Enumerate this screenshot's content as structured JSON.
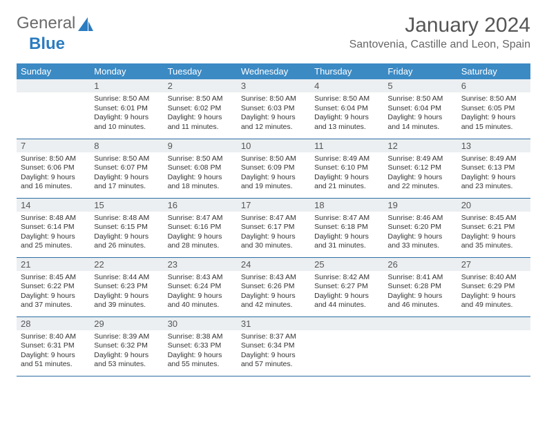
{
  "logo": {
    "text1": "General",
    "text2": "Blue"
  },
  "title": "January 2024",
  "location": "Santovenia, Castille and Leon, Spain",
  "colors": {
    "header_bg": "#3b8ac4",
    "header_text": "#ffffff",
    "daynum_bg": "#eceff1",
    "row_divider": "#2b6ca3",
    "logo_gray": "#6a6a6a",
    "logo_blue": "#2b7cc0"
  },
  "weekdays": [
    "Sunday",
    "Monday",
    "Tuesday",
    "Wednesday",
    "Thursday",
    "Friday",
    "Saturday"
  ],
  "start_offset": 1,
  "days": [
    {
      "n": "1",
      "sr": "8:50 AM",
      "ss": "6:01 PM",
      "dl": "9 hours and 10 minutes."
    },
    {
      "n": "2",
      "sr": "8:50 AM",
      "ss": "6:02 PM",
      "dl": "9 hours and 11 minutes."
    },
    {
      "n": "3",
      "sr": "8:50 AM",
      "ss": "6:03 PM",
      "dl": "9 hours and 12 minutes."
    },
    {
      "n": "4",
      "sr": "8:50 AM",
      "ss": "6:04 PM",
      "dl": "9 hours and 13 minutes."
    },
    {
      "n": "5",
      "sr": "8:50 AM",
      "ss": "6:04 PM",
      "dl": "9 hours and 14 minutes."
    },
    {
      "n": "6",
      "sr": "8:50 AM",
      "ss": "6:05 PM",
      "dl": "9 hours and 15 minutes."
    },
    {
      "n": "7",
      "sr": "8:50 AM",
      "ss": "6:06 PM",
      "dl": "9 hours and 16 minutes."
    },
    {
      "n": "8",
      "sr": "8:50 AM",
      "ss": "6:07 PM",
      "dl": "9 hours and 17 minutes."
    },
    {
      "n": "9",
      "sr": "8:50 AM",
      "ss": "6:08 PM",
      "dl": "9 hours and 18 minutes."
    },
    {
      "n": "10",
      "sr": "8:50 AM",
      "ss": "6:09 PM",
      "dl": "9 hours and 19 minutes."
    },
    {
      "n": "11",
      "sr": "8:49 AM",
      "ss": "6:10 PM",
      "dl": "9 hours and 21 minutes."
    },
    {
      "n": "12",
      "sr": "8:49 AM",
      "ss": "6:12 PM",
      "dl": "9 hours and 22 minutes."
    },
    {
      "n": "13",
      "sr": "8:49 AM",
      "ss": "6:13 PM",
      "dl": "9 hours and 23 minutes."
    },
    {
      "n": "14",
      "sr": "8:48 AM",
      "ss": "6:14 PM",
      "dl": "9 hours and 25 minutes."
    },
    {
      "n": "15",
      "sr": "8:48 AM",
      "ss": "6:15 PM",
      "dl": "9 hours and 26 minutes."
    },
    {
      "n": "16",
      "sr": "8:47 AM",
      "ss": "6:16 PM",
      "dl": "9 hours and 28 minutes."
    },
    {
      "n": "17",
      "sr": "8:47 AM",
      "ss": "6:17 PM",
      "dl": "9 hours and 30 minutes."
    },
    {
      "n": "18",
      "sr": "8:47 AM",
      "ss": "6:18 PM",
      "dl": "9 hours and 31 minutes."
    },
    {
      "n": "19",
      "sr": "8:46 AM",
      "ss": "6:20 PM",
      "dl": "9 hours and 33 minutes."
    },
    {
      "n": "20",
      "sr": "8:45 AM",
      "ss": "6:21 PM",
      "dl": "9 hours and 35 minutes."
    },
    {
      "n": "21",
      "sr": "8:45 AM",
      "ss": "6:22 PM",
      "dl": "9 hours and 37 minutes."
    },
    {
      "n": "22",
      "sr": "8:44 AM",
      "ss": "6:23 PM",
      "dl": "9 hours and 39 minutes."
    },
    {
      "n": "23",
      "sr": "8:43 AM",
      "ss": "6:24 PM",
      "dl": "9 hours and 40 minutes."
    },
    {
      "n": "24",
      "sr": "8:43 AM",
      "ss": "6:26 PM",
      "dl": "9 hours and 42 minutes."
    },
    {
      "n": "25",
      "sr": "8:42 AM",
      "ss": "6:27 PM",
      "dl": "9 hours and 44 minutes."
    },
    {
      "n": "26",
      "sr": "8:41 AM",
      "ss": "6:28 PM",
      "dl": "9 hours and 46 minutes."
    },
    {
      "n": "27",
      "sr": "8:40 AM",
      "ss": "6:29 PM",
      "dl": "9 hours and 49 minutes."
    },
    {
      "n": "28",
      "sr": "8:40 AM",
      "ss": "6:31 PM",
      "dl": "9 hours and 51 minutes."
    },
    {
      "n": "29",
      "sr": "8:39 AM",
      "ss": "6:32 PM",
      "dl": "9 hours and 53 minutes."
    },
    {
      "n": "30",
      "sr": "8:38 AM",
      "ss": "6:33 PM",
      "dl": "9 hours and 55 minutes."
    },
    {
      "n": "31",
      "sr": "8:37 AM",
      "ss": "6:34 PM",
      "dl": "9 hours and 57 minutes."
    }
  ],
  "labels": {
    "sunrise": "Sunrise:",
    "sunset": "Sunset:",
    "daylight": "Daylight:"
  }
}
